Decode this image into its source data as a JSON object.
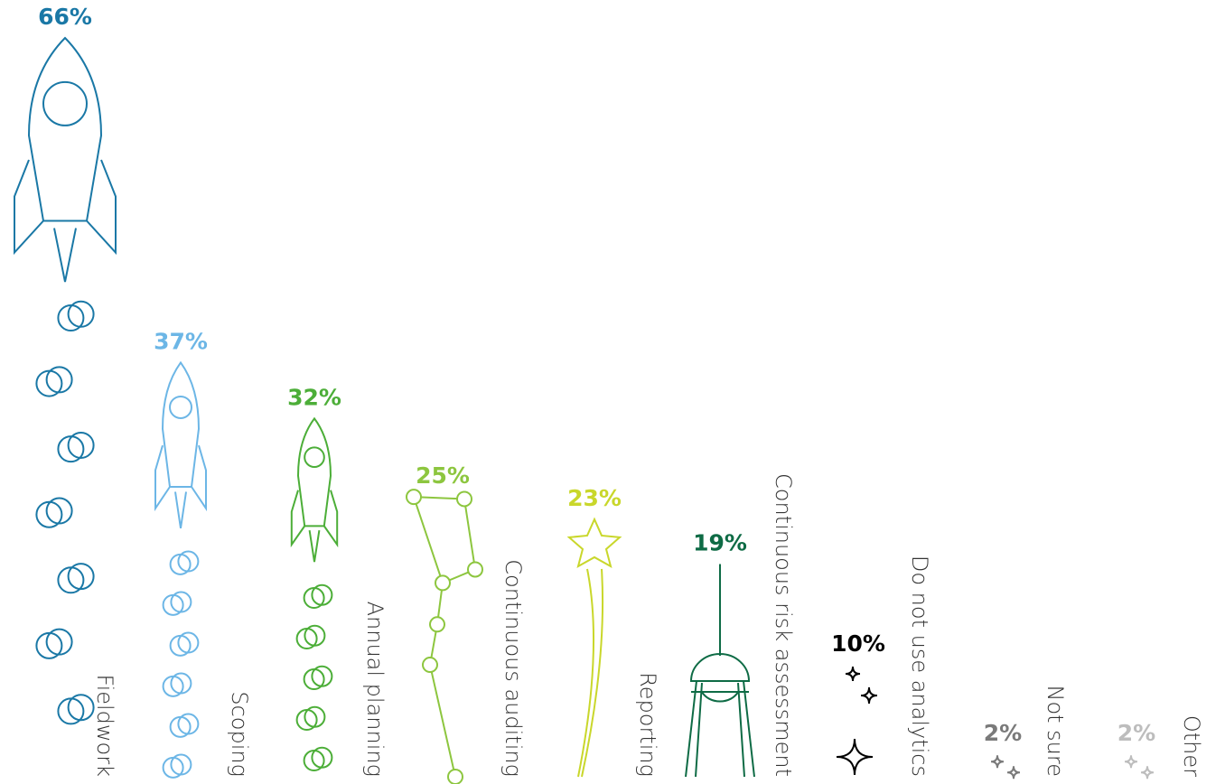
{
  "chart_data": {
    "type": "bar",
    "categories": [
      "Fieldwork",
      "Scoping",
      "Annual planning",
      "Continuous auditing",
      "Reporting",
      "Continuous risk assessment",
      "Do not use analytics",
      "Not sure",
      "Other"
    ],
    "values": [
      66,
      37,
      32,
      25,
      23,
      19,
      10,
      2,
      2
    ],
    "value_labels": [
      "66%",
      "37%",
      "32%",
      "25%",
      "23%",
      "19%",
      "10%",
      "2%",
      "2%"
    ],
    "colors": [
      "#1a78a6",
      "#6cb6e6",
      "#4cae38",
      "#8dc63f",
      "#c9d72b",
      "#0e6b45",
      "#000000",
      "#7a7a7a",
      "#bdbdbd"
    ]
  }
}
